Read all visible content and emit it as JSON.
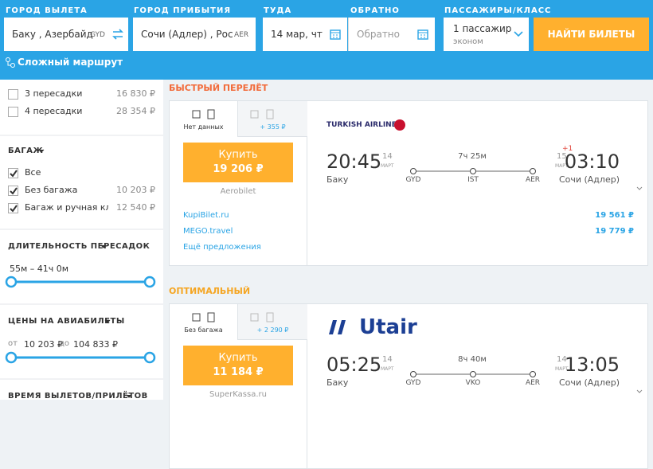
{
  "search": {
    "from_label": "ГОРОД ВЫЛЕТА",
    "from_value": "Баку , Азербайд",
    "from_code": "GYD",
    "to_label": "ГОРОД ПРИБЫТИЯ",
    "to_value": "Сочи (Адлер) , Рос",
    "to_code": "AER",
    "depart_label": "ТУДА",
    "depart_value": "14 мар, чт",
    "return_label": "ОБРАТНО",
    "return_value": "Обратно",
    "pax_label": "ПАССАЖИРЫ/КЛАСС",
    "pax_value": "1 пассажир",
    "pax_class": "эконом",
    "button": "НАЙТИ БИЛЕТЫ",
    "complex_route": "Сложный маршрут"
  },
  "filters": {
    "stops": [
      {
        "label": "3 пересадки",
        "price": "16 830 ₽"
      },
      {
        "label": "4 пересадки",
        "price": "28 354 ₽"
      }
    ],
    "baggage_title": "БАГАЖ",
    "baggage": [
      {
        "label": "Все"
      },
      {
        "label": "Без багажа",
        "price": "10 203 ₽"
      },
      {
        "label": "Багаж и ручная кладь",
        "price": "12 540 ₽"
      }
    ],
    "duration_title": "ДЛИТЕЛЬНОСТЬ ПЕРЕСАДОК",
    "duration_range": "55м – 41ч 0м",
    "price_title": "ЦЕНЫ НА АВИАБИЛЕТЫ",
    "price_from_label": "от",
    "price_from": "10 203 ₽",
    "price_to_label": "до",
    "price_to": "104 833 ₽",
    "times_title": "ВРЕМЯ ВЫЛЕТОВ/ПРИЛЁТОВ"
  },
  "results": [
    {
      "section": "БЫСТРЫЙ ПЕРЕЛЁТ",
      "tab1": "Нет данных",
      "tab2": "+ 355 ₽",
      "buy": "Купить",
      "price": "19 206 ₽",
      "agent": "Aerobilet",
      "offers": [
        {
          "name": "KupiBilet.ru",
          "price": "19 561 ₽"
        },
        {
          "name": "MEGO.travel",
          "price": "19 779 ₽"
        }
      ],
      "more": "Ещё предложения",
      "airline": "TURKISH AIRLINES",
      "dep_time": "20:45",
      "dep_day": "14",
      "dep_month": "МАРТ",
      "dep_city": "Баку",
      "duration": "7ч 25м",
      "stops": [
        "GYD",
        "IST",
        "AER"
      ],
      "arr_plus": "+1",
      "arr_day": "15",
      "arr_month": "МАРТ",
      "arr_time": "03:10",
      "arr_city": "Сочи (Адлер)"
    },
    {
      "section": "ОПТИМАЛЬНЫЙ",
      "tab1": "Без багажа",
      "tab2": "+ 2 290 ₽",
      "buy": "Купить",
      "price": "11 184 ₽",
      "agent": "SuperKassa.ru",
      "airline": "Utair",
      "dep_time": "05:25",
      "dep_day": "14",
      "dep_month": "МАРТ",
      "dep_city": "Баку",
      "duration": "8ч 40м",
      "stops": [
        "GYD",
        "VKO",
        "AER"
      ],
      "arr_day": "14",
      "arr_month": "МАРТ",
      "arr_time": "13:05",
      "arr_city": "Сочи (Адлер)"
    }
  ]
}
